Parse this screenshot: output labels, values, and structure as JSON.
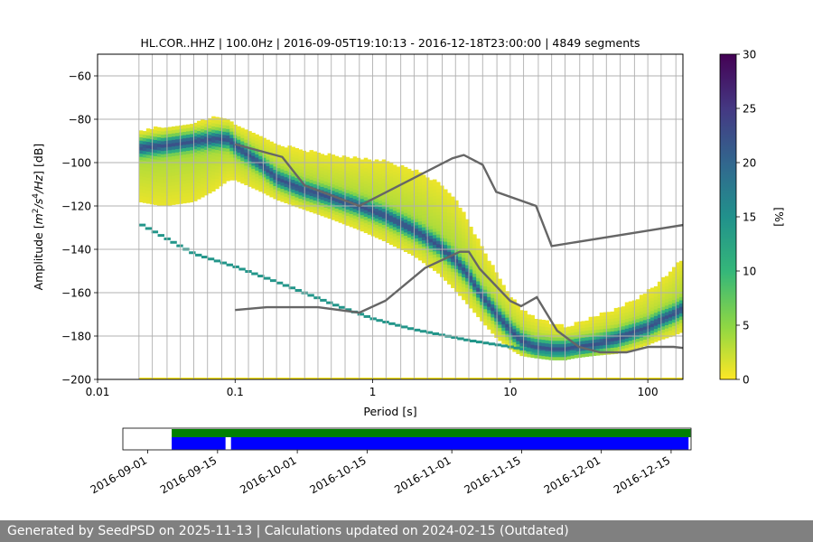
{
  "chart_data": [
    {
      "type": "heatmap",
      "title": "HL.COR..HHZ | 100.0Hz | 2016-09-05T19:10:13 - 2016-12-18T23:00:00 | 4849 segments",
      "xlabel": "Period [s]",
      "ylabel_parts": [
        "Amplitude [",
        "m",
        "2",
        "/",
        "s",
        "4",
        "/",
        "Hz",
        "] [dB]"
      ],
      "xscale": "log",
      "xlim": [
        0.01,
        180
      ],
      "ylim": [
        -200,
        -50
      ],
      "x_ticks": [
        0.01,
        0.1,
        1,
        10,
        100
      ],
      "x_tick_labels": [
        "0.01",
        "0.1",
        "1",
        "10",
        "100"
      ],
      "y_ticks": [
        -200,
        -180,
        -160,
        -140,
        -120,
        -100,
        -80,
        -60
      ],
      "y_tick_labels": [
        "−200",
        "−180",
        "−160",
        "−140",
        "−120",
        "−100",
        "−80",
        "−60"
      ],
      "colorbar": {
        "label": "[%]",
        "range": [
          0,
          30
        ],
        "ticks": [
          0,
          5,
          10,
          15,
          20,
          25,
          30
        ],
        "tick_labels": [
          "0",
          "5",
          "10",
          "15",
          "20",
          "25",
          "30"
        ],
        "colormap": [
          "#fde725",
          "#90d743",
          "#35b779",
          "#21918c",
          "#31688e",
          "#443983",
          "#440154"
        ]
      },
      "mode_curve": {
        "period": [
          0.02,
          0.03,
          0.05,
          0.07,
          0.09,
          0.1,
          0.15,
          0.2,
          0.3,
          0.5,
          0.8,
          1.2,
          2,
          3,
          4,
          5,
          6,
          8,
          10,
          12,
          15,
          20,
          25,
          30,
          40,
          60,
          80,
          100,
          120,
          150,
          180
        ],
        "db": [
          -93,
          -92,
          -90,
          -89,
          -89,
          -92,
          -100,
          -107,
          -112,
          -116,
          -120,
          -124,
          -131,
          -138,
          -145,
          -152,
          -160,
          -170,
          -177,
          -182,
          -185,
          -186,
          -186,
          -185,
          -184,
          -181,
          -178,
          -176,
          -173,
          -170,
          -167
        ]
      },
      "spread_upper": [
        -86,
        -84,
        -82,
        -80,
        -80,
        -83,
        -88,
        -92,
        -95,
        -97,
        -99,
        -100,
        -104,
        -110,
        -118,
        -128,
        -138,
        -152,
        -162,
        -168,
        -172,
        -175,
        -176,
        -175,
        -172,
        -168,
        -164,
        -160,
        -156,
        -150,
        -145
      ],
      "spread_lower": [
        -118,
        -120,
        -118,
        -113,
        -108,
        -108,
        -113,
        -117,
        -121,
        -126,
        -131,
        -136,
        -143,
        -151,
        -159,
        -166,
        -172,
        -181,
        -186,
        -189,
        -190,
        -191,
        -191,
        -190,
        -189,
        -188,
        -186,
        -184,
        -182,
        -180,
        -178
      ],
      "outlier_line": {
        "period": [
          0.02,
          0.05,
          0.1,
          0.2,
          0.5,
          1,
          2,
          5,
          10,
          15,
          20,
          25,
          30
        ],
        "db": [
          -128,
          -142,
          -148,
          -155,
          -165,
          -172,
          -177,
          -182,
          -185,
          -187,
          -188,
          -188,
          -187
        ]
      },
      "nlnm_nhnm_gray_line": {
        "period": [
          0.1,
          0.17,
          0.4,
          0.8,
          1.24,
          2.4,
          4.3,
          5,
          6,
          10,
          12,
          15.6,
          21.9,
          31.6,
          45,
          70,
          101,
          154,
          180
        ],
        "db": [
          -168,
          -166.7,
          -166.7,
          -169.2,
          -163.7,
          -148.6,
          -141.1,
          -141.1,
          -149,
          -163.8,
          -166.2,
          -162.1,
          -177.5,
          -185,
          -187.5,
          -187.5,
          -185,
          -185,
          -185.5
        ],
        "upper_period": [
          0.1,
          0.22,
          0.32,
          0.8,
          3.8,
          4.6,
          6.3,
          7.9,
          15.4,
          20,
          180
        ],
        "upper_db": [
          -91.5,
          -97.4,
          -110.5,
          -120,
          -98,
          -96.5,
          -101,
          -113.5,
          -120,
          -138.5,
          -128.8
        ]
      },
      "segment_grid_periods": [
        0.02,
        0.025,
        0.032,
        0.04,
        0.05,
        0.063,
        0.08,
        0.1,
        0.125,
        0.16,
        0.2,
        0.25,
        0.32,
        0.4,
        0.5,
        0.63,
        0.8,
        1,
        1.25,
        1.6,
        2,
        2.5,
        3.2,
        4,
        5,
        6.3,
        8,
        10,
        12.5,
        16,
        20,
        25,
        32,
        40,
        50,
        63,
        80,
        100,
        125,
        160
      ]
    },
    {
      "type": "timeline",
      "x_tick_labels": [
        "2016-09-01",
        "2016-09-15",
        "2016-10-01",
        "2016-10-15",
        "2016-11-01",
        "2016-11-15",
        "2016-12-01",
        "2016-12-15"
      ],
      "x_tick_days": [
        0,
        14,
        30,
        44,
        61,
        75,
        91,
        105
      ],
      "xlim_days": [
        -5,
        109
      ],
      "green_coverage_days": [
        [
          4.8,
          108.9
        ]
      ],
      "blue_coverage_days": [
        [
          4.8,
          15.6
        ],
        [
          16.7,
          108.5
        ]
      ],
      "green_color": "#008000",
      "blue_color": "#0000ff"
    }
  ],
  "footer": {
    "text": "Generated by SeedPSD on 2025-11-13 | Calculations updated on 2024-02-15 (Outdated)"
  }
}
